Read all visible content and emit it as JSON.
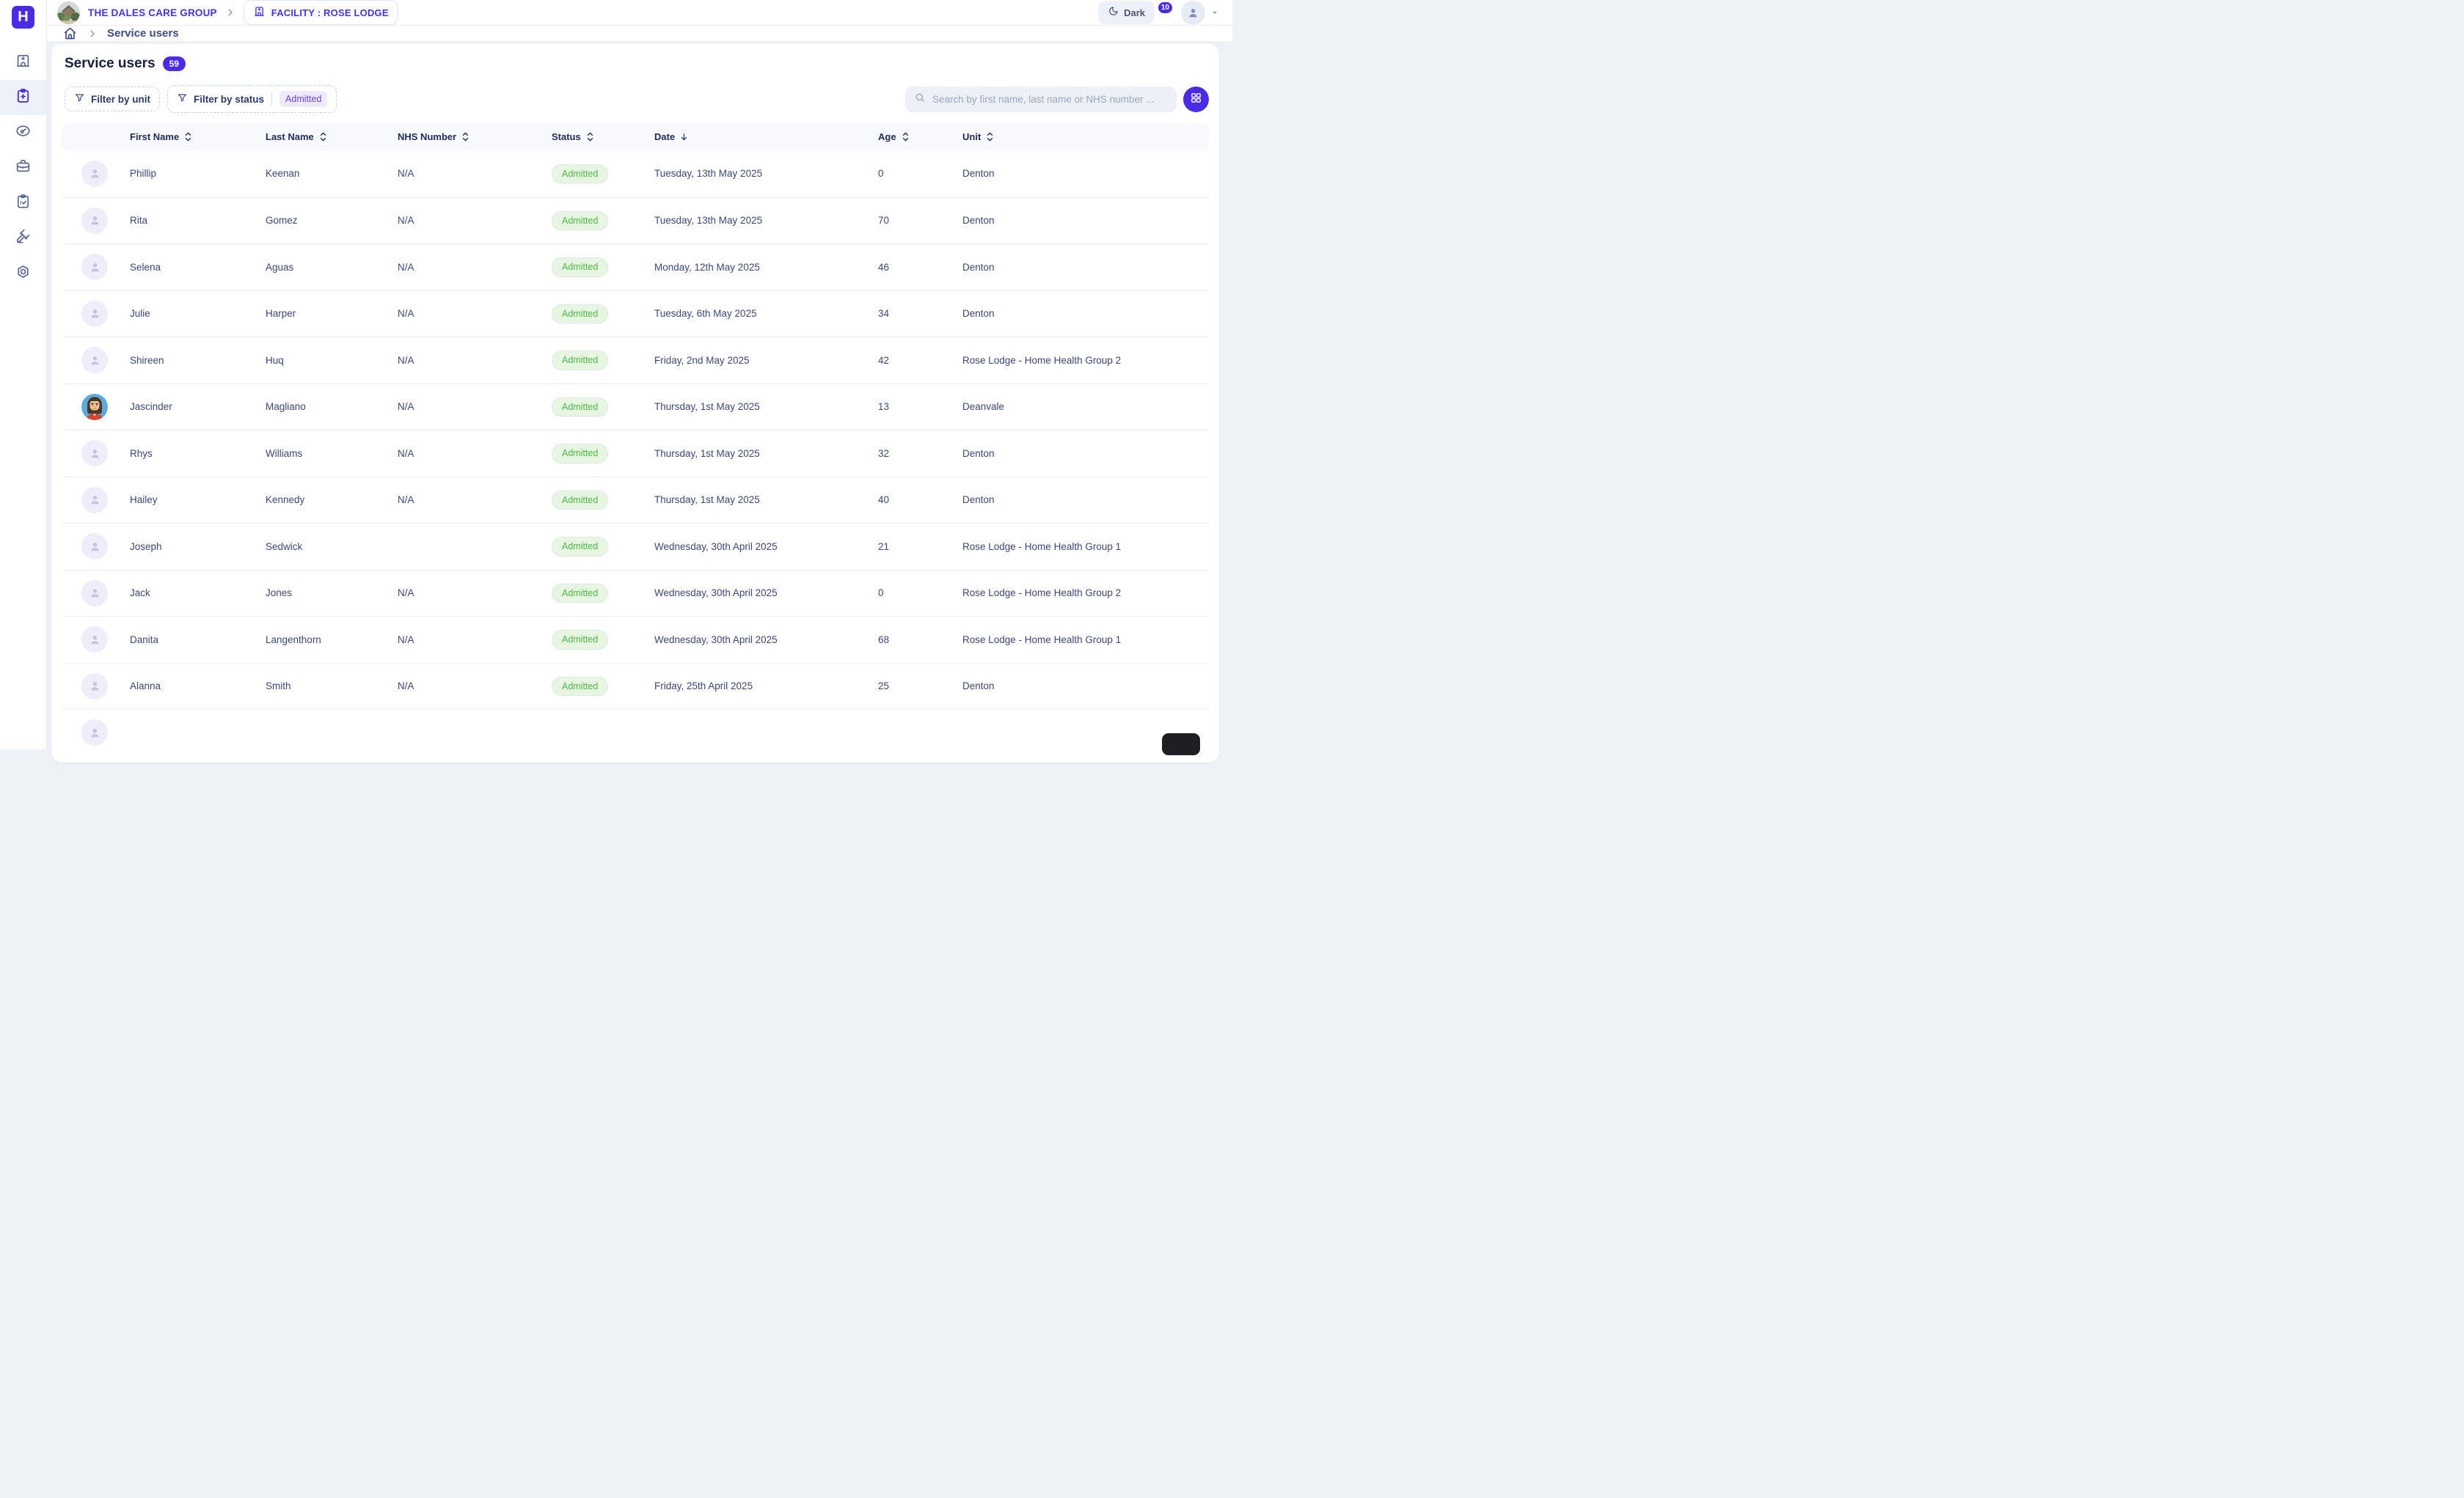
{
  "brand": {
    "logo_letter": "H",
    "org_name": "THE DALES CARE GROUP",
    "facility_label": "FACILITY : ROSE LODGE"
  },
  "topbar": {
    "dark_toggle_label": "Dark",
    "notification_count": "10"
  },
  "sidebar": {
    "items": [
      {
        "name": "facility",
        "icon": "hospital-icon",
        "active": false
      },
      {
        "name": "service-users",
        "icon": "clipboard-plus-icon",
        "active": true
      },
      {
        "name": "dashboard",
        "icon": "gauge-icon",
        "active": false
      },
      {
        "name": "workforce",
        "icon": "briefcase-icon",
        "active": false
      },
      {
        "name": "tasks",
        "icon": "clipboard-check-icon",
        "active": false
      },
      {
        "name": "governance",
        "icon": "gavel-icon",
        "active": false
      },
      {
        "name": "settings",
        "icon": "nut-icon",
        "active": false
      }
    ]
  },
  "breadcrumb": {
    "current": "Service users"
  },
  "page": {
    "title": "Service users",
    "count_badge": "59",
    "filters": {
      "unit_label": "Filter by unit",
      "status_label": "Filter by status",
      "status_value": "Admitted"
    },
    "search_placeholder": "Search by first name, last name or NHS number ..."
  },
  "table": {
    "columns": [
      "First Name",
      "Last Name",
      "NHS Number",
      "Status",
      "Date",
      "Age",
      "Unit"
    ],
    "sorted_column": "Date",
    "sort_direction": "desc",
    "rows": [
      {
        "first_name": "Phillip",
        "last_name": "Keenan",
        "nhs": "N/A",
        "status": "Admitted",
        "date": "Tuesday, 13th May 2025",
        "age": "0",
        "unit": "Denton",
        "avatar": "placeholder"
      },
      {
        "first_name": "Rita",
        "last_name": "Gomez",
        "nhs": "N/A",
        "status": "Admitted",
        "date": "Tuesday, 13th May 2025",
        "age": "70",
        "unit": "Denton",
        "avatar": "placeholder"
      },
      {
        "first_name": "Selena",
        "last_name": "Aguas",
        "nhs": "N/A",
        "status": "Admitted",
        "date": "Monday, 12th May 2025",
        "age": "46",
        "unit": "Denton",
        "avatar": "placeholder"
      },
      {
        "first_name": "Julie",
        "last_name": "Harper",
        "nhs": "N/A",
        "status": "Admitted",
        "date": "Tuesday, 6th May 2025",
        "age": "34",
        "unit": "Denton",
        "avatar": "placeholder"
      },
      {
        "first_name": "Shireen",
        "last_name": "Huq",
        "nhs": "N/A",
        "status": "Admitted",
        "date": "Friday, 2nd May 2025",
        "age": "42",
        "unit": "Rose Lodge - Home Health Group 2",
        "avatar": "placeholder"
      },
      {
        "first_name": "Jascinder",
        "last_name": "Magliano",
        "nhs": "N/A",
        "status": "Admitted",
        "date": "Thursday, 1st May 2025",
        "age": "13",
        "unit": "Deanvale",
        "avatar": "photo"
      },
      {
        "first_name": "Rhys",
        "last_name": "Williams",
        "nhs": "N/A",
        "status": "Admitted",
        "date": "Thursday, 1st May 2025",
        "age": "32",
        "unit": "Denton",
        "avatar": "placeholder"
      },
      {
        "first_name": "Hailey",
        "last_name": "Kennedy",
        "nhs": "N/A",
        "status": "Admitted",
        "date": "Thursday, 1st May 2025",
        "age": "40",
        "unit": "Denton",
        "avatar": "placeholder"
      },
      {
        "first_name": "Joseph",
        "last_name": "Sedwick",
        "nhs": "",
        "status": "Admitted",
        "date": "Wednesday, 30th April 2025",
        "age": "21",
        "unit": "Rose Lodge - Home Health Group 1",
        "avatar": "placeholder"
      },
      {
        "first_name": "Jack",
        "last_name": "Jones",
        "nhs": "N/A",
        "status": "Admitted",
        "date": "Wednesday, 30th April 2025",
        "age": "0",
        "unit": "Rose Lodge - Home Health Group 2",
        "avatar": "placeholder"
      },
      {
        "first_name": "Danita",
        "last_name": "Langenthorn",
        "nhs": "N/A",
        "status": "Admitted",
        "date": "Wednesday, 30th April 2025",
        "age": "68",
        "unit": "Rose Lodge - Home Health Group 1",
        "avatar": "placeholder"
      },
      {
        "first_name": "Alanna",
        "last_name": "Smith",
        "nhs": "N/A",
        "status": "Admitted",
        "date": "Friday, 25th April 2025",
        "age": "25",
        "unit": "Denton",
        "avatar": "placeholder"
      }
    ]
  },
  "colors": {
    "brand_purple": "#4a2be8",
    "purple_text": "#4433df",
    "navy_text": "#222c54",
    "cell_text": "#3d4872",
    "status_admitted_bg": "#e6f6e0",
    "status_admitted_text": "#50b64a",
    "page_bg": "#eef1f6",
    "active_nav_bg": "#edf1f8"
  }
}
